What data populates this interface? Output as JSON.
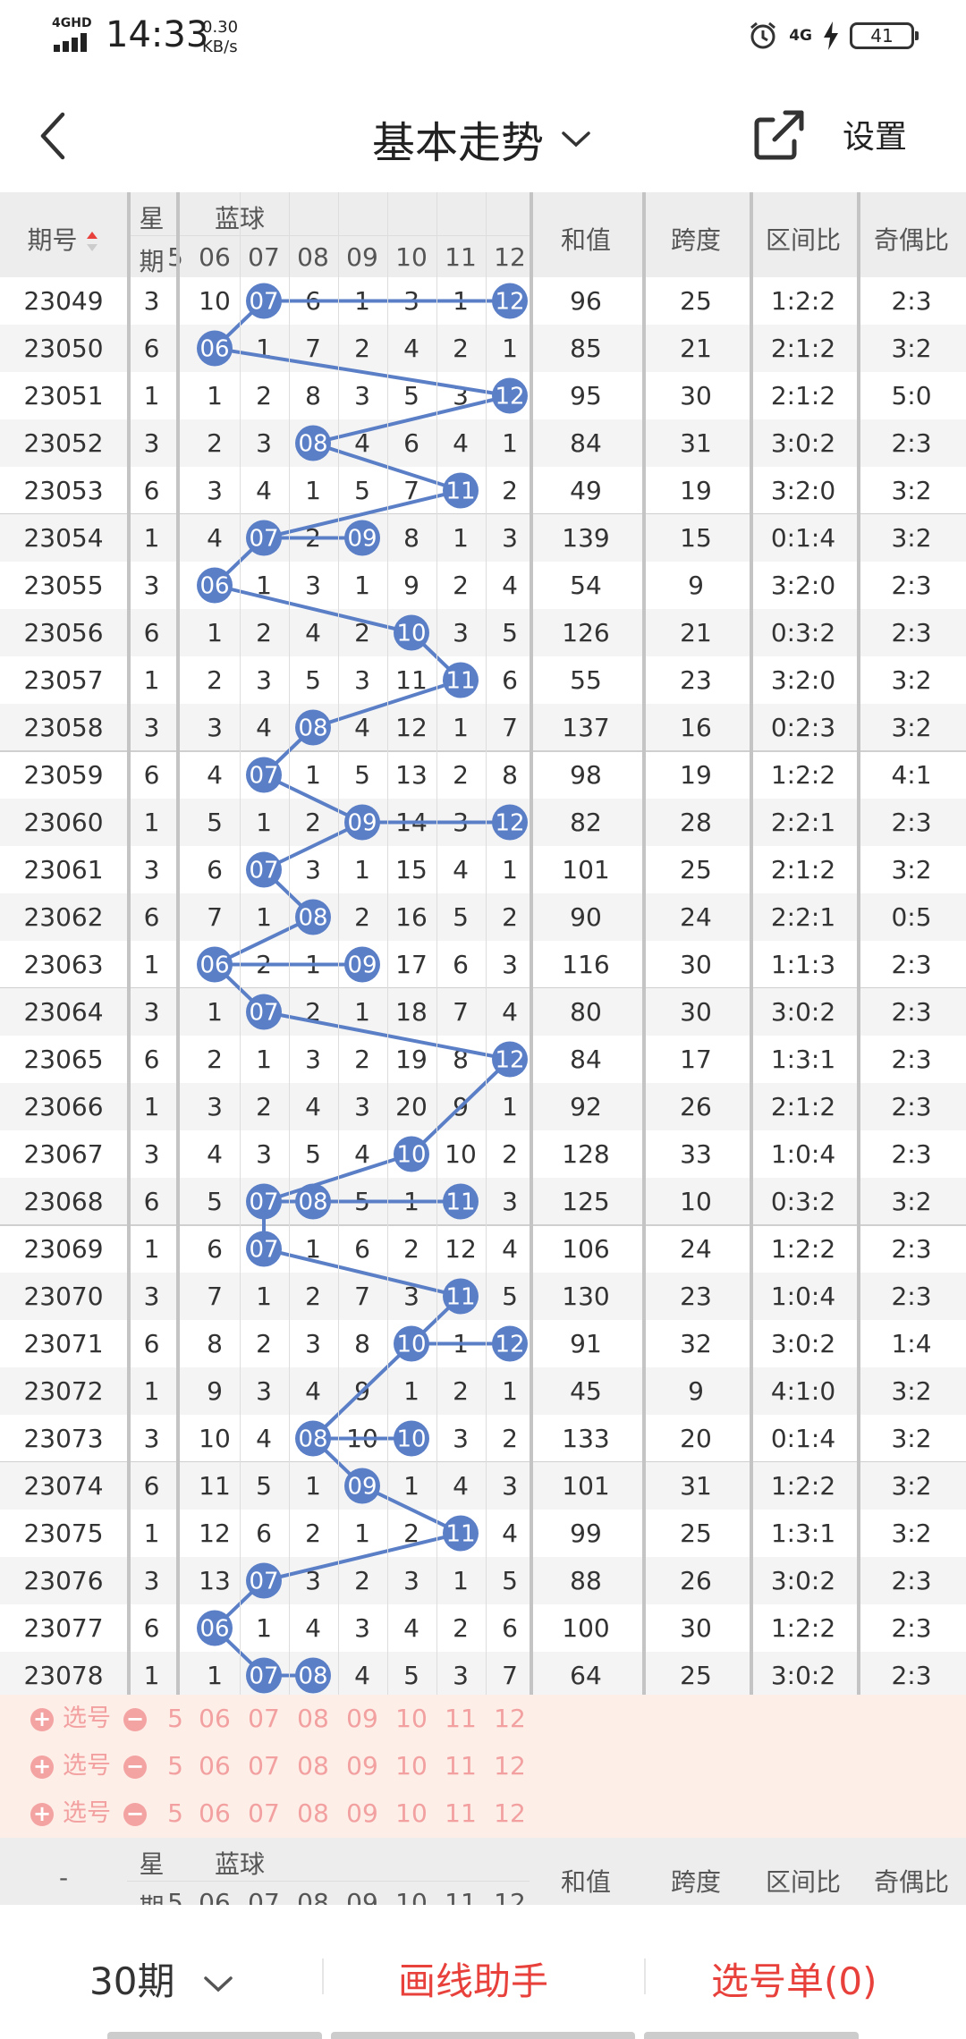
{
  "status_bar": {
    "network": "4GHD",
    "time": "14:33",
    "speed_value": "0.30",
    "speed_unit": "KB/s",
    "net_right": "4G",
    "battery": "41"
  },
  "nav": {
    "title": "基本走势",
    "settings": "设置"
  },
  "header": {
    "issue": "期号",
    "weekday_top": "星",
    "weekday_bottom": "期",
    "blue_ball": "蓝球",
    "blue_cols": [
      "5",
      "06",
      "07",
      "08",
      "09",
      "10",
      "11",
      "12"
    ],
    "sum": "和值",
    "span": "跨度",
    "zone_ratio": "区间比",
    "odd_even": "奇偶比"
  },
  "rows": [
    {
      "issue": "23049",
      "wd": "3",
      "cells": [
        "",
        "10",
        "07",
        "6",
        "1",
        "3",
        "1",
        "12"
      ],
      "sum": "96",
      "span": "25",
      "zone": "1:2:2",
      "oe": "2:3"
    },
    {
      "issue": "23050",
      "wd": "6",
      "cells": [
        "",
        "06",
        "1",
        "7",
        "2",
        "4",
        "2",
        "1"
      ],
      "sum": "85",
      "span": "21",
      "zone": "2:1:2",
      "oe": "3:2"
    },
    {
      "issue": "23051",
      "wd": "1",
      "cells": [
        "",
        "1",
        "2",
        "8",
        "3",
        "5",
        "3",
        "12"
      ],
      "sum": "95",
      "span": "30",
      "zone": "2:1:2",
      "oe": "5:0"
    },
    {
      "issue": "23052",
      "wd": "3",
      "cells": [
        "",
        "2",
        "3",
        "08",
        "4",
        "6",
        "4",
        "1"
      ],
      "sum": "84",
      "span": "31",
      "zone": "3:0:2",
      "oe": "2:3"
    },
    {
      "issue": "23053",
      "wd": "6",
      "cells": [
        "",
        "3",
        "4",
        "1",
        "5",
        "7",
        "11",
        "2"
      ],
      "sum": "49",
      "span": "19",
      "zone": "3:2:0",
      "oe": "3:2"
    },
    {
      "issue": "23054",
      "wd": "1",
      "cells": [
        "",
        "4",
        "07",
        "2",
        "09",
        "8",
        "1",
        "3"
      ],
      "sum": "139",
      "span": "15",
      "zone": "0:1:4",
      "oe": "3:2"
    },
    {
      "issue": "23055",
      "wd": "3",
      "cells": [
        "",
        "06",
        "1",
        "3",
        "1",
        "9",
        "2",
        "4"
      ],
      "sum": "54",
      "span": "9",
      "zone": "3:2:0",
      "oe": "2:3"
    },
    {
      "issue": "23056",
      "wd": "6",
      "cells": [
        "",
        "1",
        "2",
        "4",
        "2",
        "10",
        "3",
        "5"
      ],
      "sum": "126",
      "span": "21",
      "zone": "0:3:2",
      "oe": "2:3"
    },
    {
      "issue": "23057",
      "wd": "1",
      "cells": [
        "",
        "2",
        "3",
        "5",
        "3",
        "11",
        "11",
        "6"
      ],
      "sum": "55",
      "span": "23",
      "zone": "3:2:0",
      "oe": "3:2"
    },
    {
      "issue": "23058",
      "wd": "3",
      "cells": [
        "",
        "3",
        "4",
        "08",
        "4",
        "12",
        "1",
        "7"
      ],
      "sum": "137",
      "span": "16",
      "zone": "0:2:3",
      "oe": "3:2"
    },
    {
      "issue": "23059",
      "wd": "6",
      "cells": [
        "",
        "4",
        "07",
        "1",
        "5",
        "13",
        "2",
        "8"
      ],
      "sum": "98",
      "span": "19",
      "zone": "1:2:2",
      "oe": "4:1"
    },
    {
      "issue": "23060",
      "wd": "1",
      "cells": [
        "",
        "5",
        "1",
        "2",
        "09",
        "14",
        "3",
        "12"
      ],
      "sum": "82",
      "span": "28",
      "zone": "2:2:1",
      "oe": "2:3"
    },
    {
      "issue": "23061",
      "wd": "3",
      "cells": [
        "",
        "6",
        "07",
        "3",
        "1",
        "15",
        "4",
        "1"
      ],
      "sum": "101",
      "span": "25",
      "zone": "2:1:2",
      "oe": "3:2"
    },
    {
      "issue": "23062",
      "wd": "6",
      "cells": [
        "",
        "7",
        "1",
        "08",
        "2",
        "16",
        "5",
        "2"
      ],
      "sum": "90",
      "span": "24",
      "zone": "2:2:1",
      "oe": "0:5"
    },
    {
      "issue": "23063",
      "wd": "1",
      "cells": [
        "",
        "06",
        "2",
        "1",
        "09",
        "17",
        "6",
        "3"
      ],
      "sum": "116",
      "span": "30",
      "zone": "1:1:3",
      "oe": "2:3"
    },
    {
      "issue": "23064",
      "wd": "3",
      "cells": [
        "",
        "1",
        "07",
        "2",
        "1",
        "18",
        "7",
        "4"
      ],
      "sum": "80",
      "span": "30",
      "zone": "3:0:2",
      "oe": "2:3"
    },
    {
      "issue": "23065",
      "wd": "6",
      "cells": [
        "",
        "2",
        "1",
        "3",
        "2",
        "19",
        "8",
        "12"
      ],
      "sum": "84",
      "span": "17",
      "zone": "1:3:1",
      "oe": "2:3"
    },
    {
      "issue": "23066",
      "wd": "1",
      "cells": [
        "",
        "3",
        "2",
        "4",
        "3",
        "20",
        "9",
        "1"
      ],
      "sum": "92",
      "span": "26",
      "zone": "2:1:2",
      "oe": "2:3"
    },
    {
      "issue": "23067",
      "wd": "3",
      "cells": [
        "",
        "4",
        "3",
        "5",
        "4",
        "10",
        "10",
        "2"
      ],
      "sum": "128",
      "span": "33",
      "zone": "1:0:4",
      "oe": "2:3"
    },
    {
      "issue": "23068",
      "wd": "6",
      "cells": [
        "",
        "5",
        "07",
        "08",
        "5",
        "1",
        "11",
        "3"
      ],
      "sum": "125",
      "span": "10",
      "zone": "0:3:2",
      "oe": "3:2"
    },
    {
      "issue": "23069",
      "wd": "1",
      "cells": [
        "",
        "6",
        "07",
        "1",
        "6",
        "2",
        "12",
        "4"
      ],
      "sum": "106",
      "span": "24",
      "zone": "1:2:2",
      "oe": "2:3"
    },
    {
      "issue": "23070",
      "wd": "3",
      "cells": [
        "",
        "7",
        "1",
        "2",
        "7",
        "3",
        "11",
        "5"
      ],
      "sum": "130",
      "span": "23",
      "zone": "1:0:4",
      "oe": "2:3"
    },
    {
      "issue": "23071",
      "wd": "6",
      "cells": [
        "",
        "8",
        "2",
        "3",
        "8",
        "10",
        "1",
        "12"
      ],
      "sum": "91",
      "span": "32",
      "zone": "3:0:2",
      "oe": "1:4"
    },
    {
      "issue": "23072",
      "wd": "1",
      "cells": [
        "",
        "9",
        "3",
        "4",
        "9",
        "1",
        "2",
        "1"
      ],
      "sum": "45",
      "span": "9",
      "zone": "4:1:0",
      "oe": "3:2"
    },
    {
      "issue": "23073",
      "wd": "3",
      "cells": [
        "",
        "10",
        "4",
        "08",
        "10",
        "10",
        "3",
        "2"
      ],
      "sum": "133",
      "span": "20",
      "zone": "0:1:4",
      "oe": "3:2"
    },
    {
      "issue": "23074",
      "wd": "6",
      "cells": [
        "",
        "11",
        "5",
        "1",
        "09",
        "1",
        "4",
        "3"
      ],
      "sum": "101",
      "span": "31",
      "zone": "1:2:2",
      "oe": "3:2"
    },
    {
      "issue": "23075",
      "wd": "1",
      "cells": [
        "",
        "12",
        "6",
        "2",
        "1",
        "2",
        "11",
        "4"
      ],
      "sum": "99",
      "span": "25",
      "zone": "1:3:1",
      "oe": "3:2"
    },
    {
      "issue": "23076",
      "wd": "3",
      "cells": [
        "",
        "13",
        "07",
        "3",
        "2",
        "3",
        "1",
        "5"
      ],
      "sum": "88",
      "span": "26",
      "zone": "3:0:2",
      "oe": "2:3"
    },
    {
      "issue": "23077",
      "wd": "6",
      "cells": [
        "",
        "06",
        "1",
        "4",
        "3",
        "4",
        "2",
        "6"
      ],
      "sum": "100",
      "span": "30",
      "zone": "1:2:2",
      "oe": "2:3"
    },
    {
      "issue": "23078",
      "wd": "1",
      "cells": [
        "",
        "1",
        "07",
        "08",
        "4",
        "5",
        "3",
        "7"
      ],
      "sum": "64",
      "span": "25",
      "zone": "3:0:2",
      "oe": "2:3"
    }
  ],
  "selection": {
    "label": "选号",
    "cols": [
      "5",
      "06",
      "07",
      "08",
      "09",
      "10",
      "11",
      "12"
    ],
    "rows": 3
  },
  "footer_header": {
    "issue": "-",
    "weekday_top": "星",
    "weekday_bottom": "期",
    "blue_ball": "蓝球",
    "sum": "和值",
    "span": "跨度",
    "zone_ratio": "区间比",
    "odd_even": "奇偶比"
  },
  "bottom_bar": {
    "period": "30期",
    "draw_helper": "画线助手",
    "cart": "选号单(0)"
  },
  "colors": {
    "ball": "#5b7fc7",
    "accent_red": "#e8413c",
    "select_bg": "#fdeee8"
  }
}
